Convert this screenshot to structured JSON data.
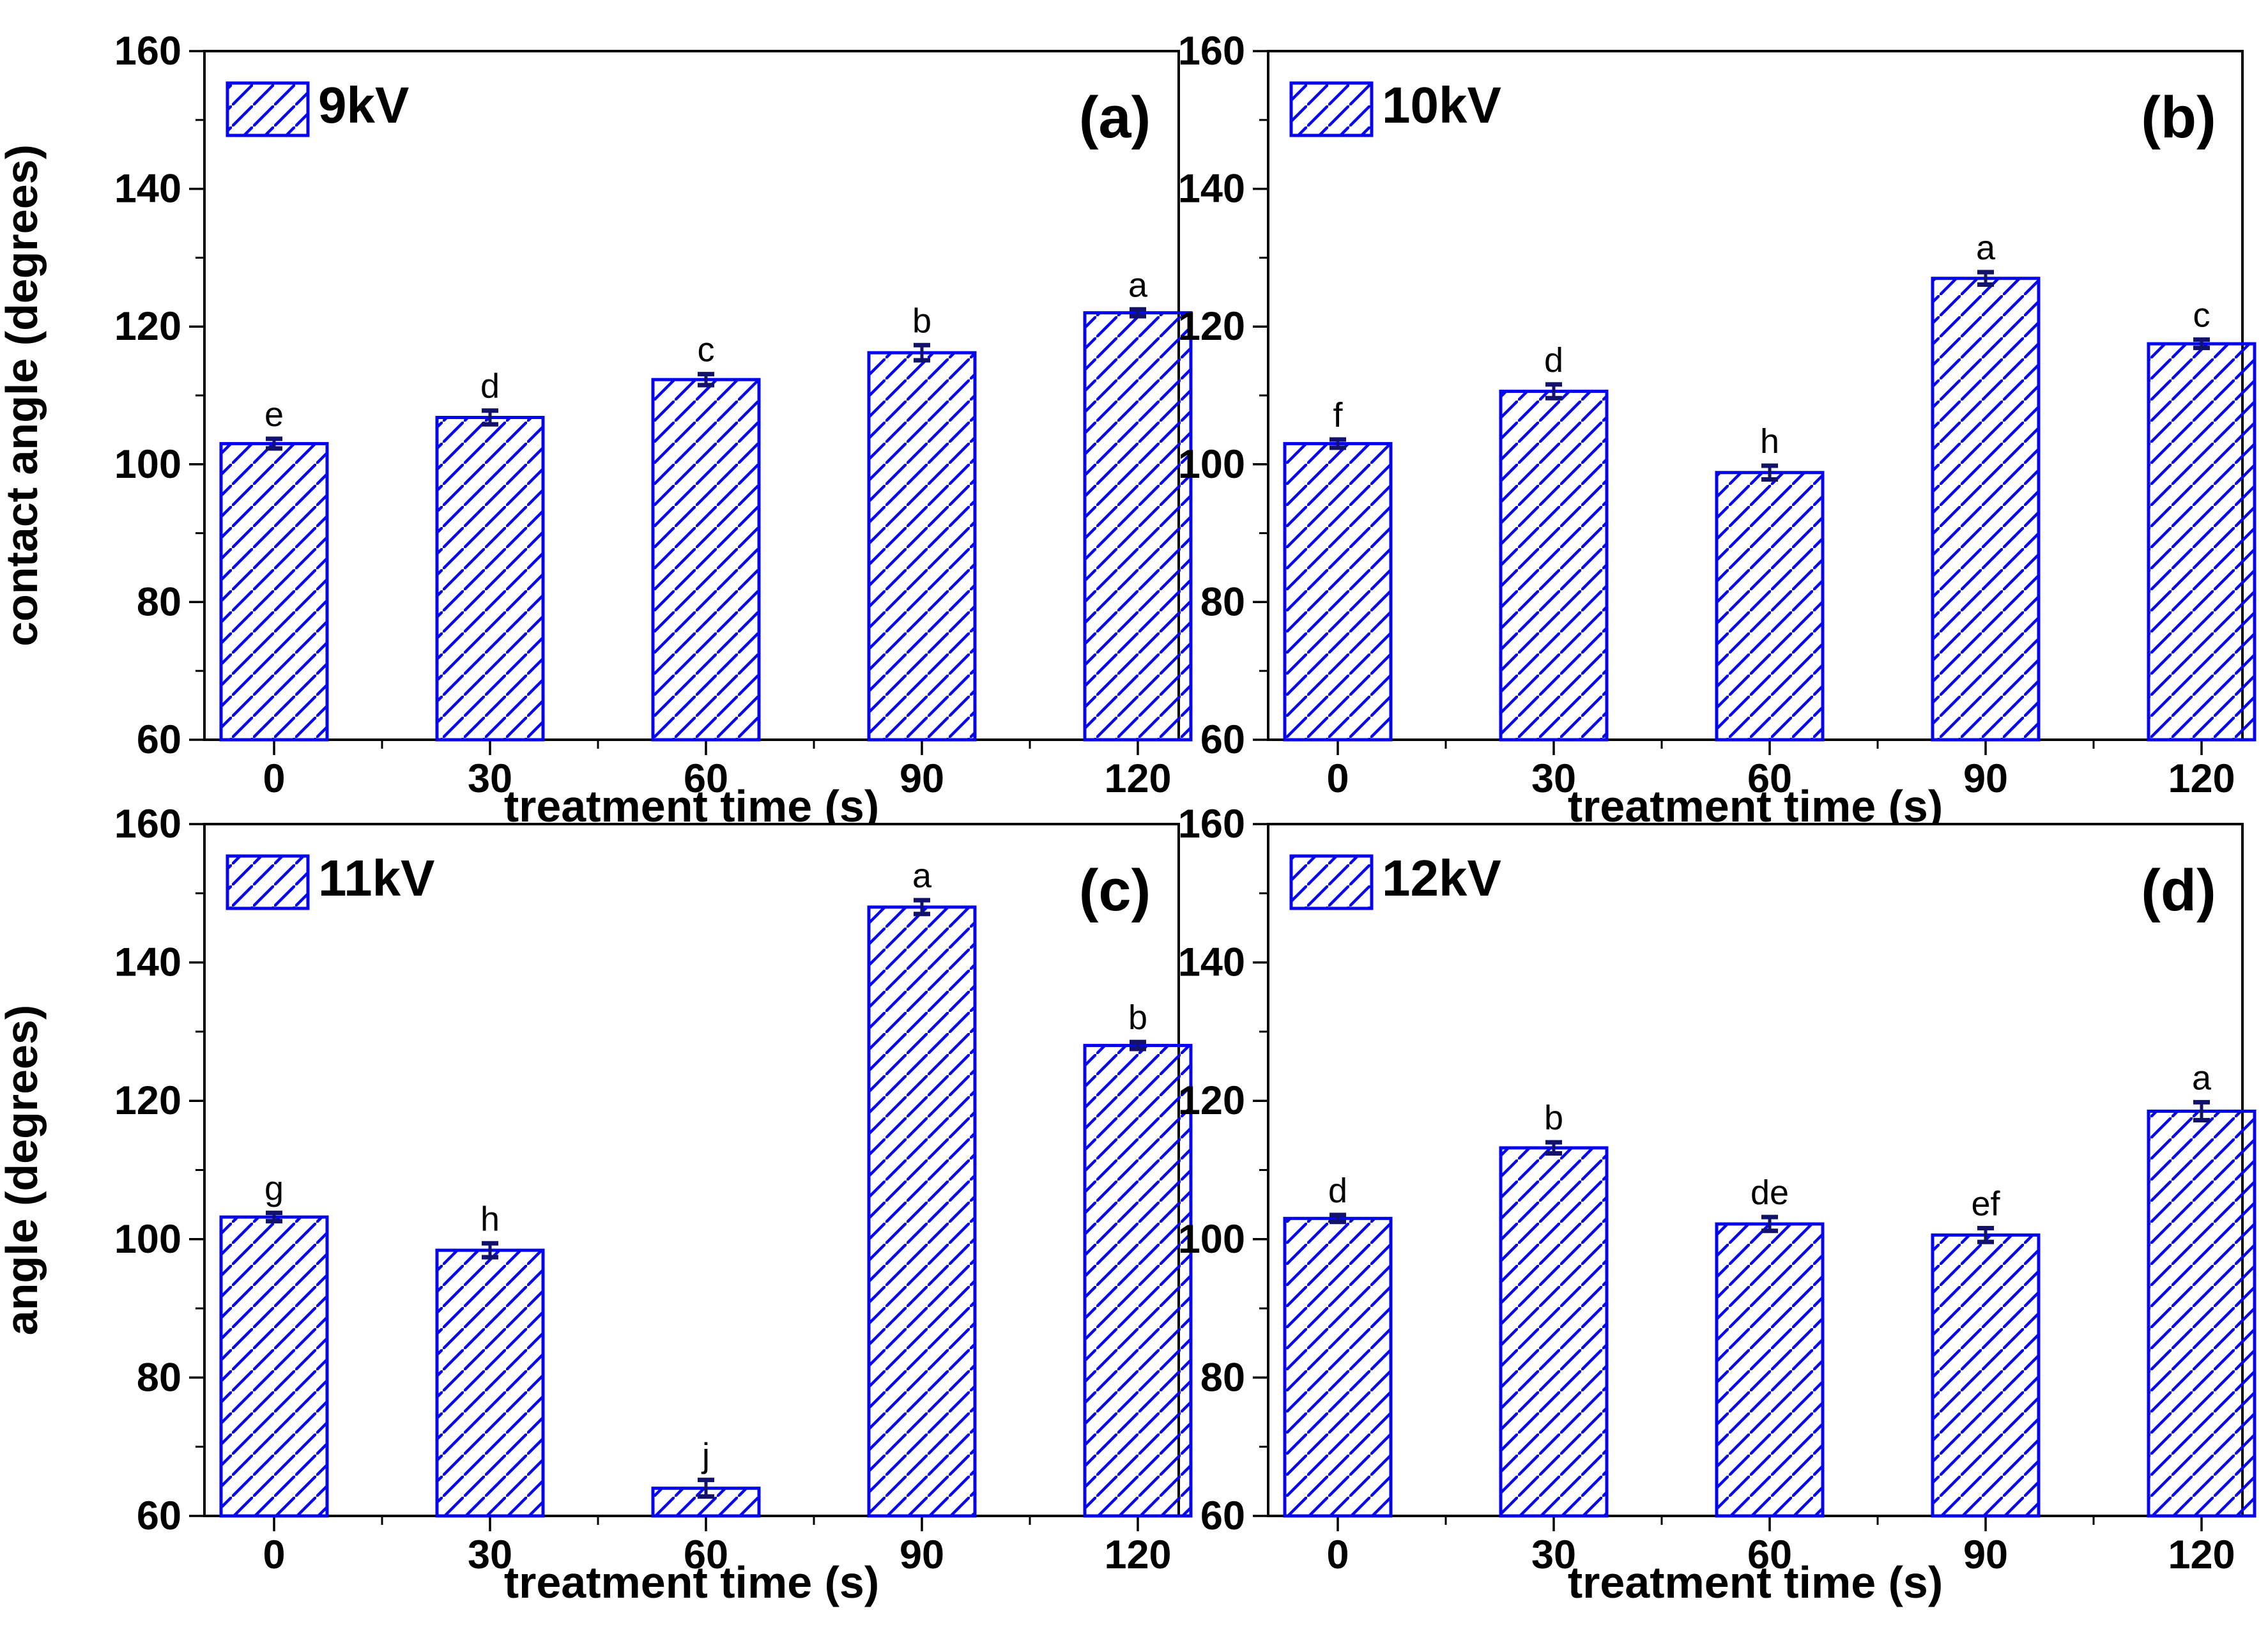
{
  "figure": {
    "background": "#ffffff",
    "colors": {
      "bar_edge": "#0505ee",
      "bar_hatch": "#0505ee",
      "error_bar": "#12126b",
      "axis": "#000000",
      "text": "#000000"
    },
    "y_axis": {
      "min": 60,
      "max": 160,
      "major_ticks": [
        60,
        80,
        100,
        120,
        140,
        160
      ],
      "minor_ticks": [
        70,
        90,
        110,
        130,
        150
      ]
    }
  },
  "chart_data": [
    {
      "type": "bar",
      "panel_label": "(a)",
      "legend": "9kV",
      "xlabel": "treatment time (s)",
      "ylabel": "contact angle (degrees)",
      "categories": [
        "0",
        "30",
        "60",
        "90",
        "120"
      ],
      "values": [
        103.0,
        106.8,
        112.3,
        116.2,
        122.0
      ],
      "errors": [
        0.7,
        1.0,
        0.8,
        1.1,
        0.5
      ],
      "sig_letters": [
        "e",
        "d",
        "c",
        "b",
        "a"
      ],
      "ylim": [
        60,
        160
      ],
      "grid": false,
      "legend_position": "top-left"
    },
    {
      "type": "bar",
      "panel_label": "(b)",
      "legend": "10kV",
      "xlabel": "treatment time (s)",
      "ylabel": "",
      "categories": [
        "0",
        "30",
        "60",
        "90",
        "120"
      ],
      "values": [
        103.0,
        110.6,
        98.8,
        127.0,
        117.5
      ],
      "errors": [
        0.6,
        1.0,
        1.0,
        0.9,
        0.6
      ],
      "sig_letters": [
        "f",
        "d",
        "h",
        "a",
        "c"
      ],
      "ylim": [
        60,
        160
      ],
      "grid": false,
      "legend_position": "top-left"
    },
    {
      "type": "bar",
      "panel_label": "(c)",
      "legend": "11kV",
      "xlabel": "treatment time (s)",
      "ylabel": "angle (degrees)",
      "categories": [
        "0",
        "30",
        "60",
        "90",
        "120"
      ],
      "values": [
        103.2,
        98.4,
        64.0,
        148.0,
        128.0
      ],
      "errors": [
        0.6,
        1.0,
        1.2,
        1.0,
        0.5
      ],
      "sig_letters": [
        "g",
        "h",
        "j",
        "a",
        "b"
      ],
      "ylim": [
        60,
        160
      ],
      "grid": false,
      "legend_position": "top-left"
    },
    {
      "type": "bar",
      "panel_label": "(d)",
      "legend": "12kV",
      "xlabel": "treatment time (s)",
      "ylabel": "",
      "categories": [
        "0",
        "30",
        "60",
        "90",
        "120"
      ],
      "values": [
        103.0,
        113.2,
        102.2,
        100.6,
        118.5
      ],
      "errors": [
        0.5,
        0.8,
        1.0,
        1.0,
        1.3
      ],
      "sig_letters": [
        "d",
        "b",
        "de",
        "ef",
        "a"
      ],
      "ylim": [
        60,
        160
      ],
      "grid": false,
      "legend_position": "top-left"
    }
  ]
}
